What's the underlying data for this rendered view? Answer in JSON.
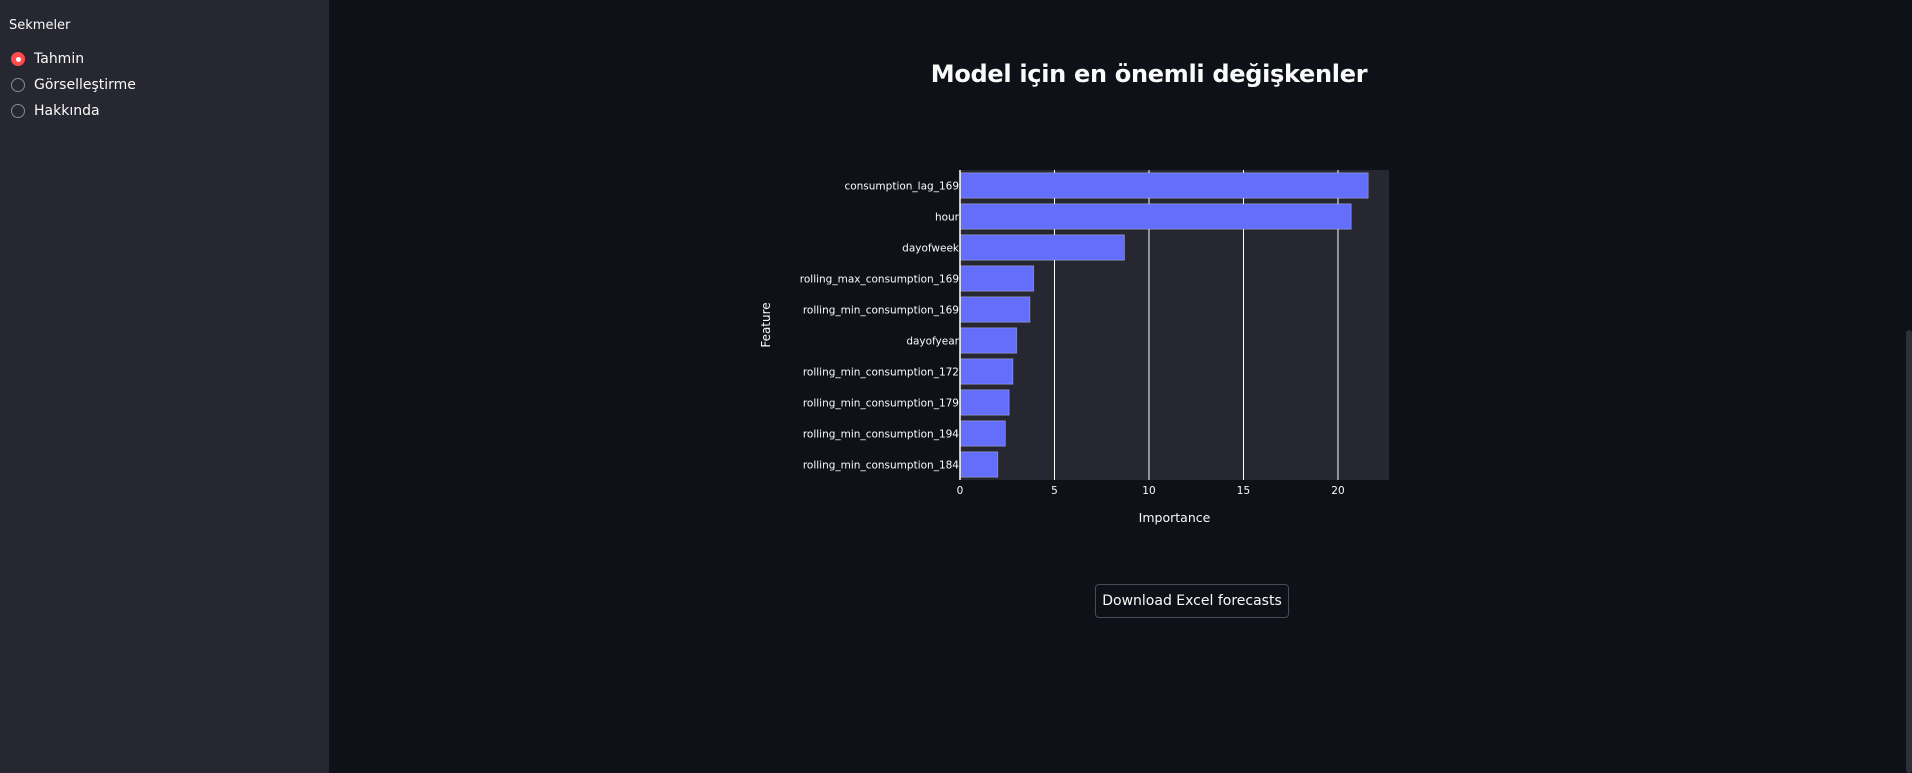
{
  "sidebar": {
    "heading": "Sekmeler",
    "options": [
      {
        "label": "Tahmin",
        "selected": true
      },
      {
        "label": "Görselleştirme",
        "selected": false
      },
      {
        "label": "Hakkında",
        "selected": false
      }
    ]
  },
  "main": {
    "title": "Model için en önemli değişkenler",
    "download_label": "Download Excel forecasts"
  },
  "colors": {
    "accent": "#ff4b4b",
    "bar_fill": "#636efa",
    "plot_bg": "#262730",
    "page_bg": "#0e1117",
    "sidebar_bg": "#262730"
  },
  "chart_data": {
    "type": "bar",
    "orientation": "horizontal",
    "categories": [
      "consumption_lag_169",
      "hour",
      "dayofweek",
      "rolling_max_consumption_169",
      "rolling_min_consumption_169",
      "dayofyear",
      "rolling_min_consumption_172",
      "rolling_min_consumption_179",
      "rolling_min_consumption_194",
      "rolling_min_consumption_184"
    ],
    "values": [
      21.6,
      20.7,
      8.7,
      3.9,
      3.7,
      3.0,
      2.8,
      2.6,
      2.4,
      2.0
    ],
    "xlabel": "Importance",
    "ylabel": "Feature",
    "xlim": [
      0,
      22.7
    ],
    "xticks": [
      0,
      5,
      10,
      15,
      20
    ],
    "grid": true
  }
}
